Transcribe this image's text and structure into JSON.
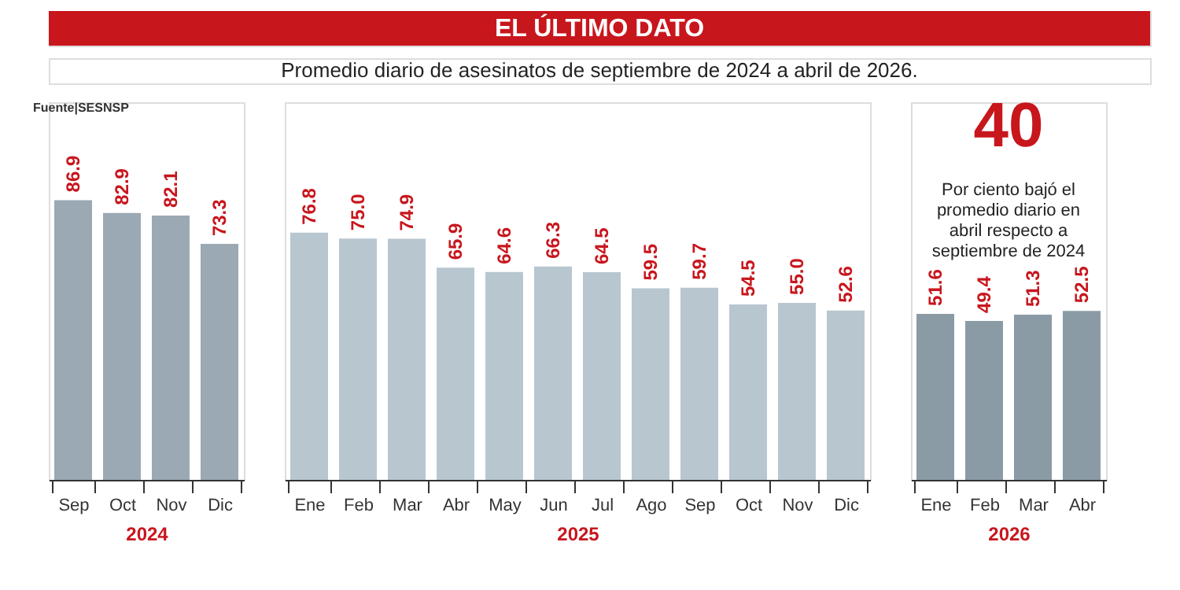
{
  "chart_data": [
    {
      "type": "other",
      "title": "EL ÚLTIMO DATO",
      "subtitle": "Promedio diario de asesinatos de septiembre de 2024 a abril de 2026."
    },
    {
      "type": "bar",
      "xlabel": "2024",
      "categories": [
        "Sep",
        "Oct",
        "Nov",
        "Dic"
      ],
      "values": [
        86.9,
        82.9,
        82.1,
        73.3
      ],
      "color": "#9aa9b3",
      "data_labels": true,
      "annotations": [
        "Fuente|SESNSP"
      ]
    },
    {
      "type": "bar",
      "xlabel": "2025",
      "categories": [
        "Ene",
        "Feb",
        "Mar",
        "Abr",
        "May",
        "Jun",
        "Jul",
        "Ago",
        "Sep",
        "Oct",
        "Nov",
        "Dic"
      ],
      "values": [
        76.8,
        75.0,
        74.9,
        65.9,
        64.6,
        66.3,
        64.5,
        59.5,
        59.7,
        54.5,
        55.0,
        52.6
      ],
      "color": "#b8c6d0",
      "data_labels": true,
      "value_labels": [
        "76.8",
        "75.0",
        "74.9",
        "65.9",
        "64.6",
        "66.3",
        "64.5",
        "59.5",
        "59.7",
        "54.5",
        "55.0",
        "52.6"
      ]
    },
    {
      "type": "bar",
      "xlabel": "2026",
      "categories": [
        "Ene",
        "Feb",
        "Mar",
        "Abr"
      ],
      "values": [
        51.6,
        49.4,
        51.3,
        52.5
      ],
      "color": "#8a9ba6",
      "data_labels": true,
      "annotations": [
        "40",
        "Por ciento bajó el promedio diario en abril respecto a septiembre de 2024"
      ]
    }
  ]
}
